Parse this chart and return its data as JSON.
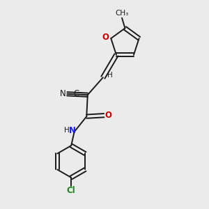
{
  "background_color": "#ebebeb",
  "bond_color": "#1a1a1a",
  "o_color": "#cc0000",
  "n_color": "#1a1aee",
  "cl_color": "#1a8a1a",
  "figsize": [
    3.0,
    3.0
  ],
  "dpi": 100,
  "bond_lw": 1.4,
  "font_size": 8.5,
  "font_size_small": 7.5,
  "xlim": [
    0,
    10
  ],
  "ylim": [
    0,
    10
  ]
}
